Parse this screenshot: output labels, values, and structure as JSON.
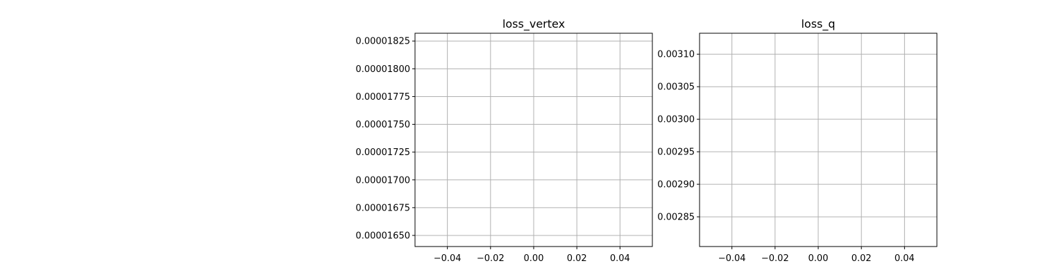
{
  "chart_data": [
    {
      "type": "line",
      "title": "loss_vertex",
      "xlabel": "",
      "ylabel": "",
      "grid": true,
      "xlim": [
        -0.055,
        0.055
      ],
      "ylim": [
        1.64e-05,
        1.832e-05
      ],
      "xticks": [
        -0.04,
        -0.02,
        0.0,
        0.02,
        0.04
      ],
      "xtick_labels": [
        "−0.04",
        "−0.02",
        "0.00",
        "0.02",
        "0.04"
      ],
      "yticks": [
        1.65e-05,
        1.675e-05,
        1.7e-05,
        1.725e-05,
        1.75e-05,
        1.775e-05,
        1.8e-05,
        1.825e-05
      ],
      "ytick_labels": [
        "0.00001650",
        "0.00001675",
        "0.00001700",
        "0.00001725",
        "0.00001750",
        "0.00001775",
        "0.00001800",
        "0.00001825"
      ],
      "series": []
    },
    {
      "type": "line",
      "title": "loss_q",
      "xlabel": "",
      "ylabel": "",
      "grid": true,
      "xlim": [
        -0.055,
        0.055
      ],
      "ylim": [
        0.0028043,
        0.0031322
      ],
      "xticks": [
        -0.04,
        -0.02,
        0.0,
        0.02,
        0.04
      ],
      "xtick_labels": [
        "−0.04",
        "−0.02",
        "0.00",
        "0.02",
        "0.04"
      ],
      "yticks": [
        0.00285,
        0.0029,
        0.00295,
        0.003,
        0.00305,
        0.0031
      ],
      "ytick_labels": [
        "0.00285",
        "0.00290",
        "0.00295",
        "0.00300",
        "0.00305",
        "0.00310"
      ],
      "series": []
    }
  ],
  "colors": {
    "grid": "#b0b0b0",
    "axis": "#000000",
    "background": "#ffffff"
  }
}
